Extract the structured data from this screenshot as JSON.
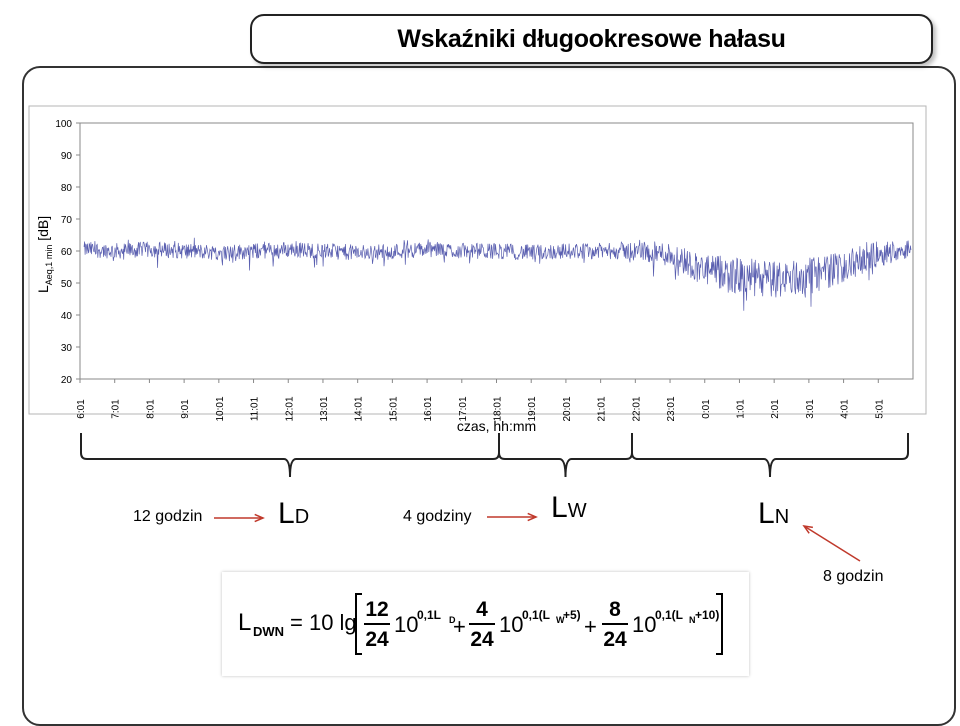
{
  "title": "Wskaźniki długookresowe hałasu",
  "chart_data": {
    "type": "line",
    "ylabel": "L",
    "ylabel_sub": "Aeq,1 min",
    "ylabel_unit": "[dB]",
    "xlabel": "czas, hh:mm",
    "ylim": [
      20,
      100
    ],
    "yticks": [
      100,
      90,
      80,
      70,
      60,
      50,
      40,
      30,
      20
    ],
    "xticks": [
      "6:01",
      "7:01",
      "8:01",
      "9:01",
      "10:01",
      "11:01",
      "12:01",
      "13:01",
      "14:01",
      "15:01",
      "16:01",
      "17:01",
      "18:01",
      "19:01",
      "20:01",
      "21:01",
      "22:01",
      "23:01",
      "0:01",
      "1:01",
      "2:01",
      "3:01",
      "4:01",
      "5:01"
    ],
    "grid": false,
    "series_color": "#5a5fb0",
    "hourly_mean": [
      60.5,
      60,
      60.5,
      60,
      59.5,
      60,
      60.5,
      60,
      59.5,
      60,
      60.5,
      60,
      60,
      59.5,
      60,
      60,
      60,
      59,
      54,
      52,
      51,
      52,
      55,
      59,
      61
    ],
    "hourly_noise_amplitude": [
      2.5,
      2.5,
      2.5,
      2.5,
      2.5,
      2.5,
      2.5,
      2.5,
      2.5,
      2.5,
      2.5,
      2.5,
      2.5,
      2.5,
      2.5,
      2.5,
      3,
      4,
      5,
      6,
      6,
      6,
      5,
      4,
      3
    ]
  },
  "annotations": {
    "label_12h": "12 godzin",
    "ld_main": "L",
    "ld_sub": "D",
    "label_4h": "4 godziny",
    "lw_main": "L",
    "lw_sub": "W",
    "ln_main": "L",
    "ln_sub": "N",
    "label_8h": "8 godzin"
  },
  "formula": {
    "lhs": "L",
    "lhs_sub": "DWN",
    "eq": "= 10 lg",
    "t1_num": "12",
    "t1_den": "24",
    "t1_base": "10",
    "t1_exp": "0,1L",
    "t1_exp_sub": "D",
    "plus1": "+",
    "t2_num": "4",
    "t2_den": "24",
    "t2_base": "10",
    "t2_exp": "0,1(L",
    "t2_exp_sub": "W",
    "t2_exp_tail": "+5)",
    "plus2": "+",
    "t3_num": "8",
    "t3_den": "24",
    "t3_base": "10",
    "t3_exp": "0,1(L",
    "t3_exp_sub": "N",
    "t3_exp_tail": "+10)"
  }
}
